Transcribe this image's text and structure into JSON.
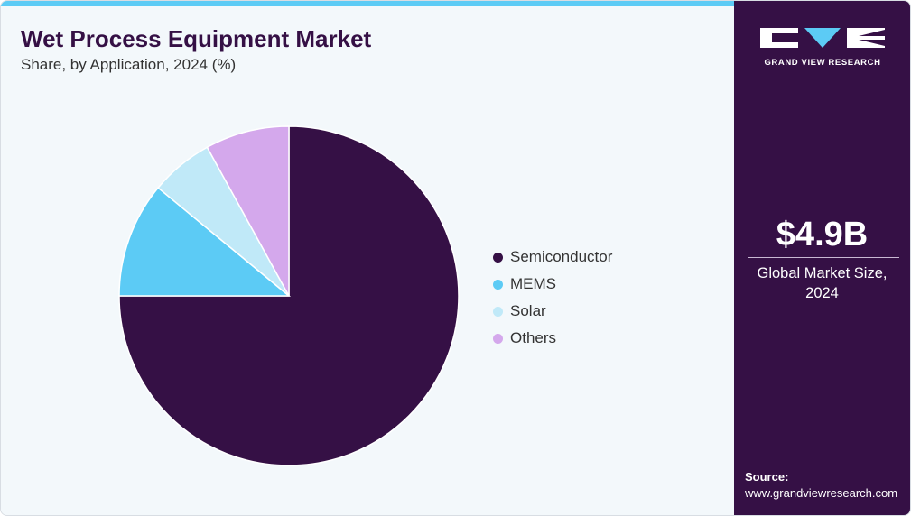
{
  "header": {
    "title": "Wet Process Equipment Market",
    "subtitle": "Share, by Application, 2024 (%)"
  },
  "chart_data": {
    "type": "pie",
    "title": "Wet Process Equipment Market",
    "subtitle": "Share, by Application, 2024 (%)",
    "categories": [
      "Semiconductor",
      "MEMS",
      "Solar",
      "Others"
    ],
    "values": [
      75,
      11,
      6,
      8
    ],
    "colors": [
      "#351045",
      "#5ccbf5",
      "#c0e9f8",
      "#d4a8ec"
    ],
    "start_angle_deg": 0,
    "direction": "clockwise",
    "legend_position": "right"
  },
  "side_panel": {
    "brand": "GRAND VIEW RESEARCH",
    "market_value": "$4.9B",
    "market_label_line1": "Global Market Size,",
    "market_label_line2": "2024",
    "source_label": "Source:",
    "source_url": "www.grandviewresearch.com",
    "background_color": "#351045"
  },
  "accent_color": "#5ccbf5"
}
